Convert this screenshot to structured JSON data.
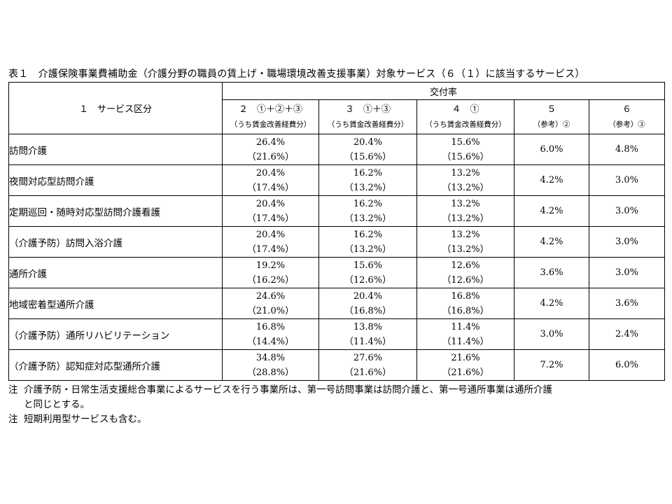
{
  "caption": "表１　介護保険事業費補助金（介護分野の職員の賃上げ・職場環境改善支援事業）対象サービス（６（１）に該当するサービス）",
  "header": {
    "service_col": "１　サービス区分",
    "rate_group": "交付率",
    "columns": [
      {
        "main": "２　①＋②＋③",
        "sub": "（うち賃金改善経費分）"
      },
      {
        "main": "３　①＋③",
        "sub": "（うち賃金改善経費分）"
      },
      {
        "main": "４　①",
        "sub": "（うち賃金改善経費分）"
      },
      {
        "main": "５",
        "sub": "（参考）②"
      },
      {
        "main": "６",
        "sub": "（参考）③"
      }
    ]
  },
  "rows": [
    {
      "name": "訪問介護",
      "c2": "26.4%",
      "c2s": "（21.6%）",
      "c3": "20.4%",
      "c3s": "（15.6%）",
      "c4": "15.6%",
      "c4s": "（15.6%）",
      "c5": "6.0%",
      "c6": "4.8%"
    },
    {
      "name": "夜間対応型訪問介護",
      "c2": "20.4%",
      "c2s": "（17.4%）",
      "c3": "16.2%",
      "c3s": "（13.2%）",
      "c4": "13.2%",
      "c4s": "（13.2%）",
      "c5": "4.2%",
      "c6": "3.0%"
    },
    {
      "name": "定期巡回・随時対応型訪問介護看護",
      "c2": "20.4%",
      "c2s": "（17.4%）",
      "c3": "16.2%",
      "c3s": "（13.2%）",
      "c4": "13.2%",
      "c4s": "（13.2%）",
      "c5": "4.2%",
      "c6": "3.0%"
    },
    {
      "name": "（介護予防）訪問入浴介護",
      "c2": "20.4%",
      "c2s": "（17.4%）",
      "c3": "16.2%",
      "c3s": "（13.2%）",
      "c4": "13.2%",
      "c4s": "（13.2%）",
      "c5": "4.2%",
      "c6": "3.0%"
    },
    {
      "name": "通所介護",
      "c2": "19.2%",
      "c2s": "（16.2%）",
      "c3": "15.6%",
      "c3s": "（12.6%）",
      "c4": "12.6%",
      "c4s": "（12.6%）",
      "c5": "3.6%",
      "c6": "3.0%"
    },
    {
      "name": "地域密着型通所介護",
      "c2": "24.6%",
      "c2s": "（21.0%）",
      "c3": "20.4%",
      "c3s": "（16.8%）",
      "c4": "16.8%",
      "c4s": "（16.8%）",
      "c5": "4.2%",
      "c6": "3.6%"
    },
    {
      "name": "（介護予防）通所リハビリテーション",
      "c2": "16.8%",
      "c2s": "（14.4%）",
      "c3": "13.8%",
      "c3s": "（11.4%）",
      "c4": "11.4%",
      "c4s": "（11.4%）",
      "c5": "3.0%",
      "c6": "2.4%"
    },
    {
      "name": "（介護予防）認知症対応型通所介護",
      "c2": "34.8%",
      "c2s": "（28.8%）",
      "c3": "27.6%",
      "c3s": "（21.6%）",
      "c4": "21.6%",
      "c4s": "（21.6%）",
      "c5": "7.2%",
      "c6": "6.0%"
    }
  ],
  "notes": [
    {
      "mark": "注",
      "text": "介護予防・日常生活支援総合事業によるサービスを行う事業所は、第一号訪問事業は訪問介護と、第一号通所事業は通所介護",
      "cont": "と同じとする。"
    },
    {
      "mark": "注",
      "text": "短期利用型サービスも含む。"
    }
  ]
}
